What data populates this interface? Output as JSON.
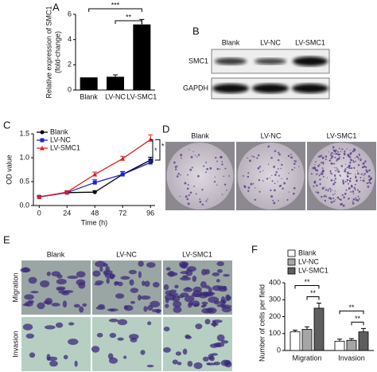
{
  "panel_labels": [
    "A",
    "B",
    "C",
    "D",
    "E",
    "F"
  ],
  "chart_data": [
    {
      "type": "bar",
      "y_label": [
        "Relative expression of SMC1",
        "(fold-change)"
      ],
      "categories": [
        "Blank",
        "LV-NC",
        "LV-SMC1"
      ],
      "values": [
        1,
        1.05,
        5.2
      ],
      "errors": [
        0,
        0.15,
        0.4
      ],
      "color": "#000000",
      "ylim": [
        0,
        6
      ],
      "yticks": [
        0,
        2,
        4,
        6
      ],
      "annotations": [
        "***",
        "**"
      ]
    },
    {
      "type": "line",
      "x_label": "Time (h)",
      "y_label": "OD value",
      "x": [
        0,
        24,
        48,
        72,
        96
      ],
      "xlim": [
        -5,
        100
      ],
      "xticks": [
        0,
        24,
        48,
        72,
        96
      ],
      "ylim": [
        0,
        1.5
      ],
      "yticks": [
        {
          "value": 0,
          "label": "0.0"
        },
        {
          "value": 0.5,
          "label": "0.5"
        },
        {
          "value": 1,
          "label": "1.0"
        },
        {
          "value": 1.5,
          "label": "1.5"
        }
      ],
      "legend": "upper-left",
      "series": [
        {
          "name": "Blank",
          "color": "#000000",
          "values": [
            0.18,
            0.27,
            0.28,
            0.65,
            0.95
          ],
          "errors": [
            0.02,
            0.03,
            0.03,
            0.06,
            0.06
          ]
        },
        {
          "name": "LV-NC",
          "color": "#1f1fd6",
          "values": [
            0.18,
            0.27,
            0.48,
            0.65,
            0.9
          ],
          "errors": [
            0.02,
            0.03,
            0.06,
            0.06,
            0.07
          ]
        },
        {
          "name": "LV-SMC1",
          "color": "#e02020",
          "values": [
            0.18,
            0.28,
            0.65,
            0.98,
            1.38
          ],
          "errors": [
            0.02,
            0.03,
            0.05,
            0.05,
            0.1
          ]
        }
      ],
      "annotations": [
        "*",
        "*"
      ]
    },
    {
      "type": "grouped-bar",
      "y_label": "Number of cells per field",
      "categories": [
        "Migration",
        "Invasion"
      ],
      "ylim": [
        0,
        400
      ],
      "yticks": [
        0,
        100,
        200,
        300,
        400
      ],
      "legend": "upper-left",
      "series": [
        {
          "name": "Blank",
          "color": "#ffffff",
          "values": [
            110,
            55
          ],
          "errors": [
            10,
            12
          ]
        },
        {
          "name": "LV-NC",
          "color": "#a6a6a6",
          "values": [
            125,
            60
          ],
          "errors": [
            15,
            10
          ]
        },
        {
          "name": "LV-SMC1",
          "color": "#5e5e5e",
          "values": [
            250,
            110
          ],
          "errors": [
            30,
            20
          ]
        }
      ],
      "annotations": [
        "**",
        "**",
        "**",
        "**"
      ]
    }
  ],
  "blot": {
    "columns": [
      "Blank",
      "LV-NC",
      "LV-SMC1"
    ],
    "rows": [
      "SMC1",
      "GAPDH"
    ]
  },
  "colony": {
    "columns": [
      "Blank",
      "LV-NC",
      "LV-SMC1"
    ]
  },
  "micro": {
    "columns": [
      "Blank",
      "LV-NC",
      "LV-SMC1"
    ],
    "rows": [
      "Migration",
      "Invasion"
    ]
  }
}
